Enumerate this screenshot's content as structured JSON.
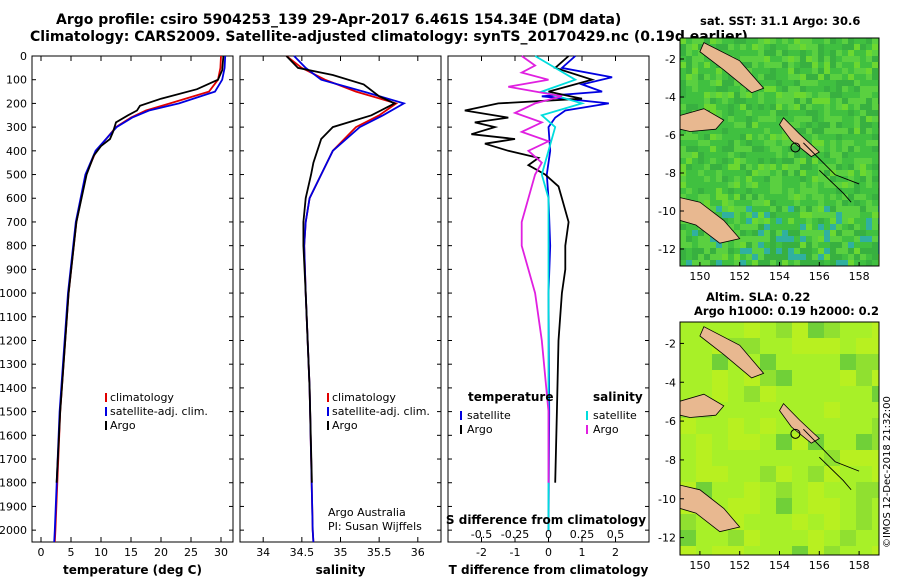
{
  "header": {
    "line1": "Argo profile: csiro 5904253_139 29-Apr-2017 6.461S 154.34E (DM data)",
    "line2": "Climatology: CARS2009. Satellite-adjusted climatology: synTS_20170429.nc (0.19d earlier)"
  },
  "colors": {
    "climatology": "#e00000",
    "satellite": "#0000e0",
    "argo": "#000000",
    "satellite_s": "#00dddd",
    "argo_s": "#e020e0",
    "land": "#e8b890",
    "ocean_sst": "#40c040",
    "ocean_sla": "#a8f028"
  },
  "depth_ticks": [
    "0",
    "100",
    "200",
    "300",
    "400",
    "500",
    "600",
    "700",
    "800",
    "900",
    "1000",
    "1100",
    "1200",
    "1300",
    "1400",
    "1500",
    "1600",
    "1700",
    "1800",
    "1900",
    "2000"
  ],
  "chart_data": [
    {
      "type": "line",
      "name": "temperature",
      "xlabel": "temperature (deg C)",
      "xlim": [
        -1.5,
        32
      ],
      "ylim": [
        0,
        2050
      ],
      "x_ticks": [
        "0",
        "5",
        "10",
        "15",
        "20",
        "25",
        "30"
      ],
      "x_tick_values": [
        0,
        5,
        10,
        15,
        20,
        25,
        30
      ],
      "legend": [
        "climatology",
        "satellite-adj. clim.",
        "Argo"
      ],
      "series": [
        {
          "name": "climatology",
          "depth": [
            0,
            50,
            100,
            150,
            200,
            230,
            260,
            300,
            400,
            500,
            700,
            1000,
            1500,
            2000,
            2050
          ],
          "values": [
            30.0,
            29.9,
            29.5,
            28.0,
            21.5,
            17.5,
            15.0,
            12.5,
            9.2,
            7.5,
            5.9,
            4.6,
            3.2,
            2.4,
            2.3
          ]
        },
        {
          "name": "satellite-adj. clim.",
          "depth": [
            0,
            50,
            100,
            150,
            200,
            230,
            260,
            300,
            400,
            500,
            700,
            1000,
            1500,
            2000,
            2050
          ],
          "values": [
            30.7,
            30.6,
            30.2,
            29.0,
            23.0,
            18.0,
            15.2,
            12.6,
            9.1,
            7.4,
            5.8,
            4.5,
            3.1,
            2.3,
            2.2
          ]
        },
        {
          "name": "Argo",
          "depth": [
            0,
            60,
            100,
            140,
            180,
            210,
            230,
            250,
            280,
            320,
            350,
            380,
            420,
            500,
            700,
            1000,
            1500,
            1800
          ],
          "values": [
            30.4,
            30.2,
            29.5,
            26.0,
            20.0,
            16.5,
            16.0,
            14.5,
            12.5,
            12.0,
            11.5,
            10.0,
            8.8,
            7.6,
            5.9,
            4.6,
            3.2,
            2.6
          ]
        }
      ]
    },
    {
      "type": "line",
      "name": "salinity",
      "xlabel": "salinity",
      "xlim": [
        33.7,
        36.3
      ],
      "ylim": [
        0,
        2050
      ],
      "x_ticks": [
        "34",
        "34.5",
        "35",
        "35.5",
        "36"
      ],
      "x_tick_values": [
        34,
        34.5,
        35,
        35.5,
        36
      ],
      "legend": [
        "climatology",
        "satellite-adj. clim.",
        "Argo"
      ],
      "annotation1": "Argo Australia",
      "annotation2": "PI: Susan Wijffels",
      "series": [
        {
          "name": "climatology",
          "depth": [
            0,
            50,
            100,
            150,
            200,
            250,
            300,
            400,
            500,
            600,
            700,
            800,
            1000,
            1400,
            2000,
            2050
          ],
          "values": [
            34.3,
            34.5,
            34.8,
            35.2,
            35.72,
            35.5,
            35.2,
            34.9,
            34.75,
            34.6,
            34.55,
            34.53,
            34.55,
            34.6,
            34.64,
            34.65
          ]
        },
        {
          "name": "satellite-adj. clim.",
          "depth": [
            0,
            50,
            100,
            150,
            200,
            250,
            300,
            400,
            500,
            600,
            700,
            800,
            1000,
            1400,
            2000,
            2050
          ],
          "values": [
            34.4,
            34.55,
            34.75,
            35.3,
            35.82,
            35.55,
            35.25,
            34.9,
            34.75,
            34.6,
            34.55,
            34.53,
            34.55,
            34.6,
            34.64,
            34.65
          ]
        },
        {
          "name": "Argo",
          "depth": [
            0,
            50,
            80,
            120,
            170,
            200,
            250,
            300,
            350,
            400,
            450,
            500,
            600,
            700,
            800,
            1000,
            1400,
            1800
          ],
          "values": [
            34.3,
            34.45,
            34.9,
            35.3,
            35.5,
            35.7,
            35.4,
            34.9,
            34.75,
            34.7,
            34.65,
            34.62,
            34.55,
            34.52,
            34.52,
            34.55,
            34.6,
            34.63
          ]
        }
      ]
    },
    {
      "type": "line",
      "name": "difference",
      "xlabel": "T difference from climatology",
      "sub_xlabel": "S difference from climatology",
      "xlim": [
        -3,
        3
      ],
      "ylim": [
        0,
        2050
      ],
      "x_ticks": [
        "-2",
        "-1",
        "0",
        "1",
        "2"
      ],
      "x_tick_values": [
        -2,
        -1,
        0,
        1,
        2
      ],
      "s_ticks": [
        "-0.5",
        "-0.25",
        "0",
        "0.25",
        "0.5"
      ],
      "s_tick_values": [
        -0.5,
        -0.25,
        0,
        0.25,
        0.5
      ],
      "legend_left_title": "temperature",
      "legend_right_title": "salinity",
      "legend_left": [
        "satellite",
        "Argo"
      ],
      "legend_right": [
        "satellite",
        "Argo"
      ],
      "series": [
        {
          "name": "T satellite",
          "depth": [
            0,
            50,
            90,
            120,
            150,
            170,
            200,
            230,
            260,
            300,
            400,
            500,
            600,
            800,
            1000,
            1500,
            2000
          ],
          "values": [
            0.8,
            0.4,
            1.9,
            1.0,
            1.6,
            -0.2,
            1.8,
            0.5,
            0.2,
            0.0,
            0.05,
            -0.05,
            0.0,
            0.05,
            0.0,
            0.02,
            0.0
          ]
        },
        {
          "name": "T Argo",
          "depth": [
            0,
            50,
            100,
            150,
            180,
            200,
            230,
            260,
            280,
            300,
            330,
            350,
            370,
            400,
            430,
            460,
            500,
            550,
            600,
            700,
            800,
            900,
            1000,
            1200,
            1500,
            1800
          ],
          "values": [
            0.6,
            0.2,
            1.3,
            0.0,
            1.0,
            -1.5,
            -2.5,
            -1.2,
            -2.2,
            -1.6,
            -2.3,
            -1.0,
            -1.9,
            -1.2,
            -0.3,
            -0.6,
            -0.1,
            0.3,
            0.4,
            0.6,
            0.5,
            0.5,
            0.4,
            0.3,
            0.25,
            0.2
          ]
        },
        {
          "name": "S satellite",
          "depth": [
            0,
            50,
            100,
            150,
            200,
            250,
            300,
            400,
            500,
            600,
            800,
            1000,
            1500,
            2000
          ],
          "values": [
            -0.1,
            0.05,
            0.2,
            -0.05,
            0.25,
            -0.05,
            0.05,
            0.0,
            -0.05,
            0.0,
            0.0,
            0.0,
            0.0,
            0.0
          ]
        },
        {
          "name": "S Argo",
          "depth": [
            0,
            40,
            70,
            100,
            130,
            170,
            200,
            240,
            280,
            320,
            360,
            400,
            450,
            500,
            600,
            700,
            800,
            900,
            1000,
            1200,
            1500,
            1800
          ],
          "values": [
            -0.2,
            -0.1,
            -0.2,
            0.0,
            -0.3,
            0.1,
            -0.1,
            -0.25,
            -0.05,
            -0.2,
            0.0,
            -0.15,
            -0.05,
            -0.1,
            -0.15,
            -0.2,
            -0.2,
            -0.15,
            -0.1,
            -0.05,
            0.0,
            0.0
          ]
        }
      ]
    }
  ],
  "maps": {
    "top_title": "sat. SST: 31.1 Argo: 30.6",
    "bottom_title1": "Altim. SLA: 0.22",
    "bottom_title2": "Argo h1000: 0.19 h2000: 0.2",
    "x_ticks": [
      "150",
      "152",
      "154",
      "156",
      "158"
    ],
    "y_ticks": [
      "-2",
      "-4",
      "-6",
      "-8",
      "-10",
      "-12"
    ]
  },
  "stamp": "©IMOS 12-Dec-2018 21:32:00"
}
